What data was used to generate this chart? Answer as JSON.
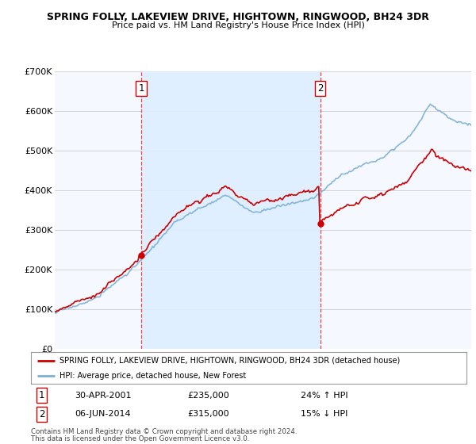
{
  "title": "SPRING FOLLY, LAKEVIEW DRIVE, HIGHTOWN, RINGWOOD, BH24 3DR",
  "subtitle": "Price paid vs. HM Land Registry's House Price Index (HPI)",
  "ylabel_ticks": [
    "£0",
    "£100K",
    "£200K",
    "£300K",
    "£400K",
    "£500K",
    "£600K",
    "£700K"
  ],
  "ylim": [
    0,
    700000
  ],
  "xlim_start": 1995.0,
  "xlim_end": 2025.5,
  "sale1_x": 2001.33,
  "sale1_y": 235000,
  "sale2_x": 2014.45,
  "sale2_y": 315000,
  "red_color": "#cc0000",
  "blue_color": "#7ab0d4",
  "shade_color": "#ddeeff",
  "background_color": "#f5f8ff",
  "grid_color": "#cccccc",
  "legend_label_red": "SPRING FOLLY, LAKEVIEW DRIVE, HIGHTOWN, RINGWOOD, BH24 3DR (detached house)",
  "legend_label_blue": "HPI: Average price, detached house, New Forest",
  "sale1_date": "30-APR-2001",
  "sale1_price": "£235,000",
  "sale1_hpi": "24% ↑ HPI",
  "sale2_date": "06-JUN-2014",
  "sale2_price": "£315,000",
  "sale2_hpi": "15% ↓ HPI",
  "footer1": "Contains HM Land Registry data © Crown copyright and database right 2024.",
  "footer2": "This data is licensed under the Open Government Licence v3.0."
}
